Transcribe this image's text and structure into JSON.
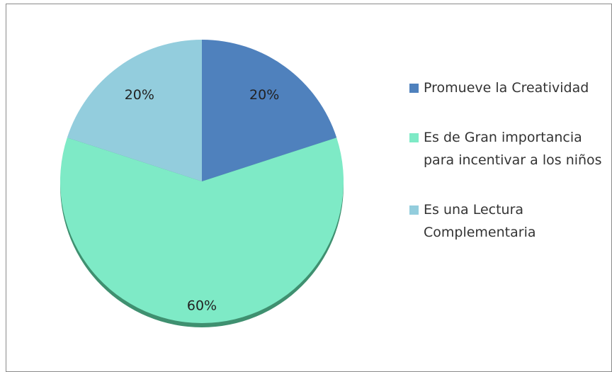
{
  "chart_data": {
    "type": "pie",
    "categories": [
      "Promueve la Creatividad",
      "Es de Gran importancia para incentivar a los niños",
      "Es una Lectura Complementaria"
    ],
    "values": [
      20,
      60,
      20
    ],
    "value_labels": [
      "20%",
      "60%",
      "20%"
    ],
    "colors": [
      "#4f81bd",
      "#7eeac6",
      "#93cddd"
    ],
    "legend": "right"
  }
}
